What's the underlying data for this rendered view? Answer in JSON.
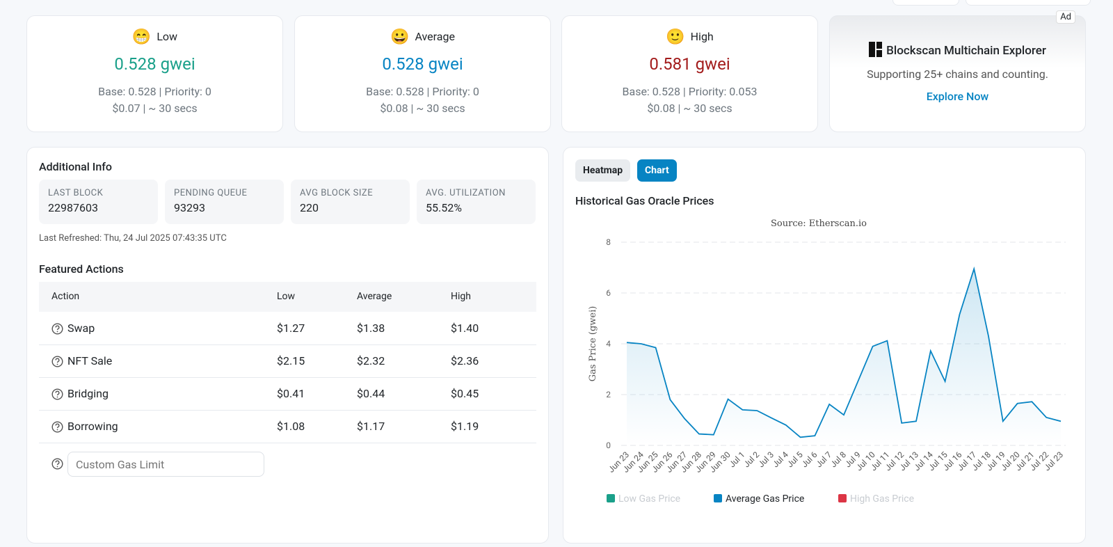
{
  "gas_cards": [
    {
      "icon": "😁",
      "label": "Low",
      "price": "0.528 gwei",
      "detail": "Base: 0.528 | Priority: 0",
      "cost": "$0.07 | ~ 30 secs"
    },
    {
      "icon": "😀",
      "label": "Average",
      "price": "0.528 gwei",
      "detail": "Base: 0.528 | Priority: 0",
      "cost": "$0.08 | ~ 30 secs"
    },
    {
      "icon": "🙂",
      "label": "High",
      "price": "0.581 gwei",
      "detail": "Base: 0.528 | Priority: 0.053",
      "cost": "$0.08 | ~ 30 secs"
    }
  ],
  "ad": {
    "badge": "Ad",
    "title": "Blockscan Multichain Explorer",
    "text": "Supporting 25+ chains and counting.",
    "link": "Explore Now"
  },
  "additional_info": {
    "title": "Additional Info",
    "stats": [
      {
        "label": "LAST BLOCK",
        "value": "22987603"
      },
      {
        "label": "PENDING QUEUE",
        "value": "93293"
      },
      {
        "label": "AVG BLOCK SIZE",
        "value": "220"
      },
      {
        "label": "AVG. UTILIZATION",
        "value": "55.52%"
      }
    ],
    "refreshed": "Last Refreshed: Thu, 24 Jul 2025 07:43:35 UTC"
  },
  "featured_actions": {
    "title": "Featured Actions",
    "header": [
      "Action",
      "Low",
      "Average",
      "High"
    ],
    "rows": [
      [
        "Swap",
        "$1.27",
        "$1.38",
        "$1.40"
      ],
      [
        "NFT Sale",
        "$2.15",
        "$2.32",
        "$2.36"
      ],
      [
        "Bridging",
        "$0.41",
        "$0.44",
        "$0.45"
      ],
      [
        "Borrowing",
        "$1.08",
        "$1.17",
        "$1.19"
      ]
    ],
    "custom_placeholder": "Custom Gas Limit"
  },
  "tabs": [
    "Heatmap",
    "Chart"
  ],
  "chart_title": "Historical Gas Oracle Prices",
  "chart_data": {
    "type": "line",
    "subtitle": "Source: Etherscan.io",
    "y_label": "Gas Price (gwei)",
    "categories": [
      "Jun 23",
      "Jun 24",
      "Jun 25",
      "Jun 26",
      "Jun 27",
      "Jun 28",
      "Jun 29",
      "Jun 30",
      "Jul 1",
      "Jul 2",
      "Jul 3",
      "Jul 4",
      "Jul 5",
      "Jul 6",
      "Jul 7",
      "Jul 8",
      "Jul 9",
      "Jul 10",
      "Jul 11",
      "Jul 12",
      "Jul 13",
      "Jul 14",
      "Jul 15",
      "Jul 16",
      "Jul 17",
      "Jul 18",
      "Jul 19",
      "Jul 20",
      "Jul 21",
      "Jul 22",
      "Jul 23"
    ],
    "series": [
      {
        "name": "Low Gas Price",
        "color": "#1aa08a",
        "visible": false
      },
      {
        "name": "Average Gas Price",
        "color": "#0784c3",
        "visible": true,
        "values": [
          4.05,
          4.0,
          3.85,
          1.8,
          1.05,
          0.45,
          0.42,
          1.82,
          1.4,
          1.37,
          1.08,
          0.8,
          0.32,
          0.38,
          1.62,
          1.2,
          2.55,
          3.9,
          4.12,
          0.88,
          0.95,
          3.72,
          2.52,
          5.15,
          6.95,
          4.3,
          0.95,
          1.65,
          1.72,
          1.1,
          0.95
        ]
      },
      {
        "name": "High Gas Price",
        "color": "#dc3545",
        "visible": false
      }
    ],
    "ylim": [
      0,
      8
    ],
    "yticks": [
      0,
      2,
      4,
      6,
      8
    ],
    "grid": true
  }
}
